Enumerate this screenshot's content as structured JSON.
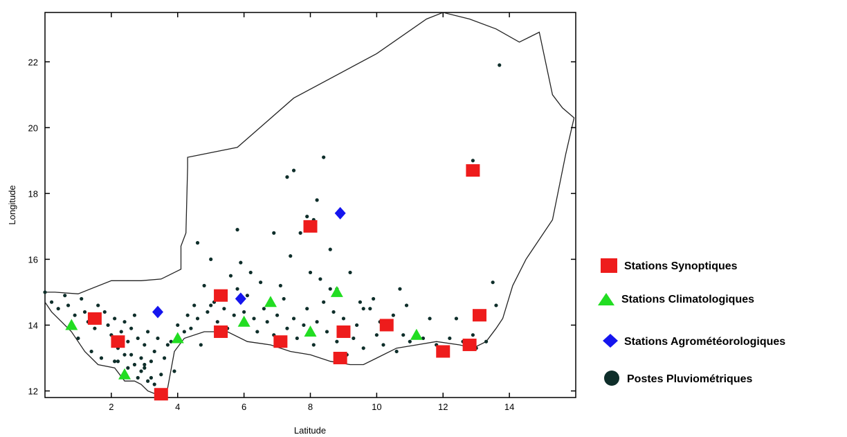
{
  "chart_data": {
    "type": "scatter",
    "title": "",
    "xlabel": "Latitude",
    "ylabel": "Longitude",
    "xlim": [
      0,
      16
    ],
    "ylim": [
      11.8,
      23.5
    ],
    "x_ticks": [
      2,
      4,
      6,
      8,
      10,
      12,
      14
    ],
    "y_ticks": [
      12,
      14,
      16,
      18,
      20,
      22
    ],
    "grid": false,
    "legend_position": "right",
    "boundary": [
      [
        0,
        15.0
      ],
      [
        0.3,
        15.0
      ],
      [
        1.0,
        14.95
      ],
      [
        2.0,
        15.35
      ],
      [
        2.9,
        15.35
      ],
      [
        3.5,
        15.4
      ],
      [
        3.7,
        15.5
      ],
      [
        4.1,
        15.7
      ],
      [
        4.1,
        16.4
      ],
      [
        4.25,
        16.8
      ],
      [
        4.3,
        18.8
      ],
      [
        4.3,
        19.1
      ],
      [
        5.8,
        19.4
      ],
      [
        7.5,
        20.9
      ],
      [
        10.0,
        22.25
      ],
      [
        11.5,
        23.3
      ],
      [
        12.0,
        23.5
      ],
      [
        12.8,
        23.3
      ],
      [
        13.6,
        23.0
      ],
      [
        14.3,
        22.6
      ],
      [
        14.9,
        22.9
      ],
      [
        15.3,
        21.0
      ],
      [
        15.6,
        20.6
      ],
      [
        15.95,
        20.3
      ],
      [
        15.7,
        19.2
      ],
      [
        15.3,
        17.2
      ],
      [
        14.5,
        16.0
      ],
      [
        14.1,
        15.2
      ],
      [
        13.8,
        14.2
      ],
      [
        13.6,
        13.9
      ],
      [
        13.3,
        13.5
      ],
      [
        12.9,
        13.3
      ],
      [
        12.5,
        13.4
      ],
      [
        11.8,
        13.5
      ],
      [
        11.2,
        13.4
      ],
      [
        10.6,
        13.3
      ],
      [
        10.0,
        13.0
      ],
      [
        9.6,
        12.8
      ],
      [
        9.2,
        12.8
      ],
      [
        8.6,
        12.9
      ],
      [
        8.0,
        13.1
      ],
      [
        7.4,
        13.2
      ],
      [
        6.8,
        13.4
      ],
      [
        6.1,
        13.5
      ],
      [
        5.5,
        13.8
      ],
      [
        4.8,
        13.8
      ],
      [
        4.2,
        13.6
      ],
      [
        3.9,
        13.2
      ],
      [
        3.7,
        12.1
      ],
      [
        3.6,
        11.8
      ],
      [
        3.1,
        12.0
      ],
      [
        2.9,
        12.2
      ],
      [
        2.7,
        12.3
      ],
      [
        2.4,
        12.3
      ],
      [
        2.1,
        12.7
      ],
      [
        1.6,
        12.8
      ],
      [
        1.2,
        13.2
      ],
      [
        1.0,
        13.5
      ],
      [
        0.8,
        13.8
      ],
      [
        0.5,
        14.1
      ],
      [
        0.2,
        14.4
      ],
      [
        0,
        14.7
      ]
    ],
    "series": [
      {
        "name": "Stations Synoptiques",
        "marker": "square",
        "color": "#ee1c1c",
        "x": [
          1.5,
          2.2,
          3.5,
          5.3,
          5.3,
          7.1,
          8.0,
          8.9,
          9.0,
          10.3,
          12.0,
          12.8,
          12.9,
          13.1
        ],
        "y": [
          14.2,
          13.5,
          11.9,
          14.9,
          13.8,
          13.5,
          17.0,
          13.0,
          13.8,
          14.0,
          13.2,
          13.4,
          18.7,
          14.3
        ]
      },
      {
        "name": "Stations Climatologiques",
        "marker": "triangle",
        "color": "#22dd22",
        "x": [
          0.8,
          2.4,
          4.0,
          6.0,
          6.8,
          8.0,
          8.8,
          11.2
        ],
        "y": [
          14.0,
          12.5,
          13.6,
          14.1,
          14.7,
          13.8,
          15.0,
          13.7
        ]
      },
      {
        "name": "Stations Agrométéorologiques",
        "marker": "diamond",
        "color": "#1515ee",
        "x": [
          3.4,
          5.9,
          8.9
        ],
        "y": [
          14.4,
          14.8,
          17.4
        ]
      },
      {
        "name": "Postes Pluviométriques",
        "marker": "circle",
        "color": "#0e2e2a",
        "x": [
          0.0,
          0.2,
          0.4,
          0.6,
          0.7,
          0.9,
          1.1,
          1.2,
          1.3,
          1.5,
          1.6,
          1.8,
          1.9,
          2.0,
          2.1,
          2.2,
          2.3,
          2.4,
          2.5,
          2.6,
          2.7,
          2.8,
          2.9,
          3.0,
          3.1,
          3.2,
          3.3,
          3.4,
          3.6,
          3.7,
          3.9,
          4.0,
          4.2,
          4.3,
          4.5,
          4.6,
          4.8,
          4.9,
          5.1,
          5.2,
          5.4,
          5.5,
          5.7,
          5.8,
          6.0,
          6.1,
          6.3,
          6.4,
          6.6,
          6.7,
          6.9,
          7.0,
          7.2,
          7.3,
          7.5,
          7.6,
          7.8,
          7.9,
          8.1,
          8.2,
          8.4,
          8.5,
          8.7,
          8.8,
          9.0,
          9.1,
          9.3,
          9.4,
          9.6,
          9.8,
          10.0,
          10.2,
          10.4,
          10.6,
          10.8,
          11.0,
          11.4,
          11.8,
          12.2,
          12.6,
          13.0,
          13.3,
          1.0,
          1.4,
          1.7,
          2.1,
          2.4,
          2.7,
          3.0,
          3.2,
          2.6,
          2.9,
          3.1,
          3.3,
          3.5,
          2.2,
          2.5,
          2.8,
          3.0,
          3.8,
          4.4,
          4.7,
          5.0,
          5.6,
          5.9,
          6.2,
          6.5,
          7.1,
          7.4,
          7.7,
          8.0,
          8.3,
          8.6,
          9.2,
          9.5,
          9.9,
          10.5,
          10.9,
          11.6,
          12.4,
          12.9,
          13.6,
          4.6,
          5.0,
          5.8,
          6.9,
          7.3,
          7.5,
          7.9,
          8.2,
          8.4,
          8.1,
          8.8,
          8.6,
          9.6,
          10.1,
          10.7,
          12.9,
          13.7,
          13.5
        ],
        "y": [
          15.0,
          14.7,
          14.5,
          14.9,
          14.6,
          14.3,
          14.8,
          14.4,
          14.1,
          13.9,
          14.6,
          14.4,
          14.0,
          13.7,
          14.2,
          13.3,
          13.8,
          14.1,
          13.5,
          13.9,
          14.3,
          13.6,
          13.0,
          13.4,
          13.8,
          12.9,
          13.2,
          13.6,
          13.0,
          13.4,
          12.6,
          14.0,
          13.8,
          14.3,
          14.6,
          14.2,
          15.2,
          14.4,
          14.7,
          14.1,
          14.5,
          13.9,
          14.3,
          15.1,
          14.4,
          14.9,
          14.2,
          13.8,
          14.5,
          14.1,
          13.7,
          14.3,
          14.8,
          13.9,
          14.2,
          13.6,
          14.0,
          14.5,
          13.4,
          14.1,
          14.7,
          13.8,
          14.4,
          13.5,
          14.2,
          13.1,
          13.6,
          14.0,
          13.3,
          14.5,
          13.7,
          13.4,
          13.9,
          13.2,
          13.7,
          13.5,
          13.6,
          13.4,
          13.6,
          13.5,
          13.3,
          13.5,
          13.6,
          13.2,
          13.0,
          12.9,
          13.1,
          12.8,
          12.7,
          12.4,
          13.1,
          12.6,
          12.3,
          12.2,
          12.5,
          12.9,
          12.7,
          12.4,
          12.8,
          13.5,
          13.9,
          13.4,
          14.6,
          15.5,
          15.9,
          15.6,
          15.3,
          15.2,
          16.1,
          16.8,
          15.6,
          15.4,
          15.1,
          15.6,
          14.7,
          14.8,
          14.3,
          14.6,
          14.2,
          14.2,
          13.7,
          14.6,
          16.5,
          16.0,
          16.9,
          16.8,
          18.5,
          18.7,
          17.3,
          17.8,
          19.1,
          17.2,
          15.1,
          16.3,
          14.5,
          14.1,
          15.1,
          19.0,
          21.9,
          15.3
        ]
      }
    ]
  },
  "legend": [
    {
      "label": "Stations Synoptiques"
    },
    {
      "label": "Stations Climatologiques"
    },
    {
      "label": "Stations Agrométéorologiques"
    },
    {
      "label": "Postes Pluviométriques"
    }
  ],
  "colors": {
    "frame": "#000000",
    "background": "#ffffff",
    "boundary": "#222222"
  }
}
